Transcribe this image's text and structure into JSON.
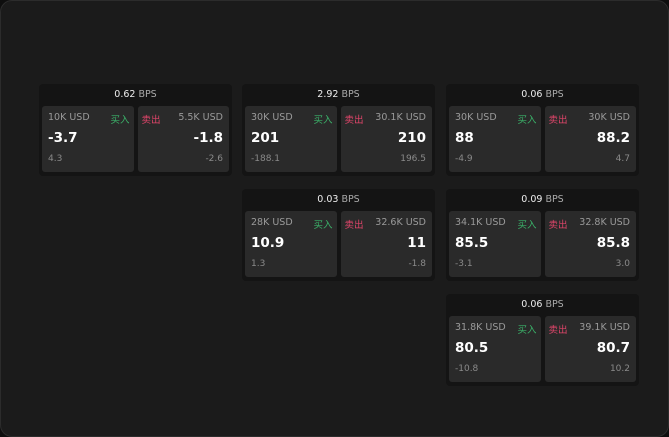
{
  "colors": {
    "buy": "#3bb36a",
    "sell": "#e0456a"
  },
  "labels": {
    "buy": "买入",
    "sell": "卖出",
    "unit": "BPS"
  },
  "tiles": [
    {
      "spread": "0.62",
      "buy": {
        "amount": "10K USD",
        "price": "-3.7",
        "diff": "4.3"
      },
      "sell": {
        "amount": "5.5K USD",
        "price": "-1.8",
        "diff": "-2.6"
      }
    },
    {
      "spread": "2.92",
      "buy": {
        "amount": "30K USD",
        "price": "201",
        "diff": "-188.1"
      },
      "sell": {
        "amount": "30.1K USD",
        "price": "210",
        "diff": "196.5"
      }
    },
    {
      "spread": "0.06",
      "buy": {
        "amount": "30K USD",
        "price": "88",
        "diff": "-4.9"
      },
      "sell": {
        "amount": "30K USD",
        "price": "88.2",
        "diff": "4.7"
      }
    },
    {
      "spread": "0.03",
      "buy": {
        "amount": "28K USD",
        "price": "10.9",
        "diff": "1.3"
      },
      "sell": {
        "amount": "32.6K USD",
        "price": "11",
        "diff": "-1.8"
      }
    },
    {
      "spread": "0.09",
      "buy": {
        "amount": "34.1K USD",
        "price": "85.5",
        "diff": "-3.1"
      },
      "sell": {
        "amount": "32.8K USD",
        "price": "85.8",
        "diff": "3.0"
      }
    },
    {
      "spread": "0.06",
      "buy": {
        "amount": "31.8K USD",
        "price": "80.5",
        "diff": "-10.8"
      },
      "sell": {
        "amount": "39.1K USD",
        "price": "80.7",
        "diff": "10.2"
      }
    }
  ]
}
